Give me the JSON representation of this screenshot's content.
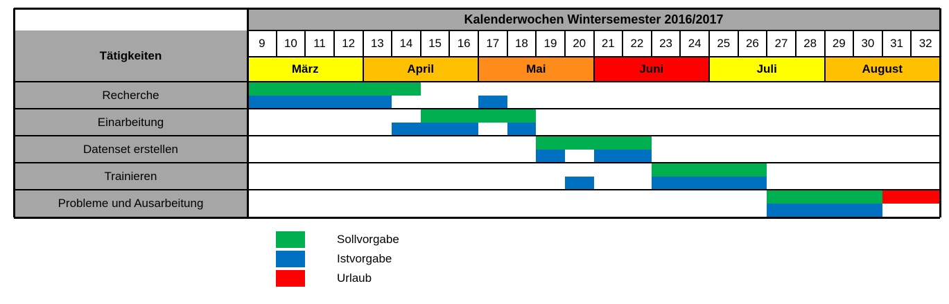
{
  "header": {
    "title": "Kalenderwochen Wintersemester 2016/2017",
    "tasks_header": "Tätigkeiten"
  },
  "weeks": [
    "9",
    "10",
    "11",
    "12",
    "13",
    "14",
    "15",
    "16",
    "17",
    "18",
    "19",
    "20",
    "21",
    "22",
    "23",
    "24",
    "25",
    "26",
    "27",
    "28",
    "29",
    "30",
    "31",
    "32"
  ],
  "months": [
    {
      "label": "März",
      "start": 0,
      "count": 4,
      "color": "#ffff00"
    },
    {
      "label": "April",
      "start": 4,
      "count": 4,
      "color": "#ffc000"
    },
    {
      "label": "Mai",
      "start": 8,
      "count": 4,
      "color": "#ff8c1a"
    },
    {
      "label": "Juni",
      "start": 12,
      "count": 4,
      "color": "#ff0000"
    },
    {
      "label": "Juli",
      "start": 16,
      "count": 4,
      "color": "#ffff00"
    },
    {
      "label": "August",
      "start": 20,
      "count": 4,
      "color": "#ffc000"
    }
  ],
  "tasks": [
    {
      "label": "Recherche",
      "bars": [
        {
          "type": "soll",
          "start_week": 9,
          "end_week": 14
        },
        {
          "type": "ist",
          "start_week": 9,
          "end_week": 13
        },
        {
          "type": "ist",
          "start_week": 17,
          "end_week": 17
        }
      ]
    },
    {
      "label": "Einarbeitung",
      "bars": [
        {
          "type": "soll",
          "start_week": 15,
          "end_week": 18
        },
        {
          "type": "ist",
          "start_week": 14,
          "end_week": 16
        },
        {
          "type": "ist",
          "start_week": 18,
          "end_week": 18
        }
      ]
    },
    {
      "label": "Datenset erstellen",
      "bars": [
        {
          "type": "soll",
          "start_week": 19,
          "end_week": 22
        },
        {
          "type": "ist",
          "start_week": 19,
          "end_week": 19
        },
        {
          "type": "ist",
          "start_week": 21,
          "end_week": 22
        }
      ]
    },
    {
      "label": "Trainieren",
      "bars": [
        {
          "type": "soll",
          "start_week": 23,
          "end_week": 26
        },
        {
          "type": "ist",
          "start_week": 20,
          "end_week": 20
        },
        {
          "type": "ist",
          "start_week": 23,
          "end_week": 26
        }
      ]
    },
    {
      "label": "Probleme und Ausarbeitung",
      "bars": [
        {
          "type": "soll",
          "start_week": 27,
          "end_week": 30
        },
        {
          "type": "urlaub",
          "start_week": 31,
          "end_week": 32
        },
        {
          "type": "ist",
          "start_week": 27,
          "end_week": 30
        }
      ]
    }
  ],
  "legend": [
    {
      "type": "soll",
      "label": "Sollvorgabe",
      "color": "#00b050"
    },
    {
      "type": "ist",
      "label": "Istvorgabe",
      "color": "#0070c0"
    },
    {
      "type": "urlaub",
      "label": "Urlaub",
      "color": "#ff0000"
    }
  ]
}
